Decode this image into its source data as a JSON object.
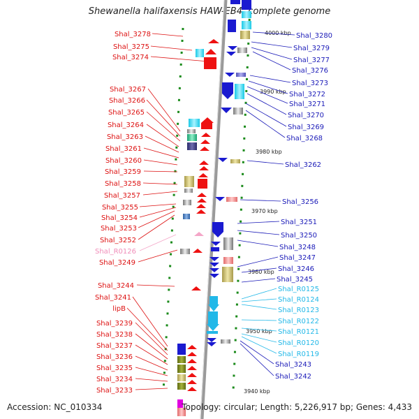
{
  "title": "Shewanella halifaxensis HAW-EB4, complete genome",
  "footer": {
    "accession": "Accession: NC_010334",
    "stats": "Topology: circular; Length: 5,226,917 bp; Genes: 4,433"
  },
  "kbp_labels": [
    "4000 kbp",
    "3990 kbp",
    "3980 kbp",
    "3970 kbp",
    "3960 kbp",
    "3950 kbp",
    "3940 kbp"
  ],
  "left_labels": [
    "Shal_3278",
    "Shal_3275",
    "Shal_3274",
    "Shal_3267",
    "Shal_3266",
    "Shal_3265",
    "Shal_3264",
    "Shal_3263",
    "Shal_3261",
    "Shal_3260",
    "Shal_3259",
    "Shal_3258",
    "Shal_3257",
    "Shal_3255",
    "Shal_3254",
    "Shal_3253",
    "Shal_3252",
    "Shal_R0126",
    "Shal_3249",
    "Shal_3244",
    "Shal_3241",
    "lipB",
    "Shal_3239",
    "Shal_3238",
    "Shal_3237",
    "Shal_3236",
    "Shal_3235",
    "Shal_3234",
    "Shal_3233"
  ],
  "right_labels": [
    "Shal_3280",
    "Shal_3279",
    "Shal_3277",
    "Shal_3276",
    "Shal_3273",
    "Shal_3272",
    "Shal_3271",
    "Shal_3270",
    "Shal_3269",
    "Shal_3268",
    "Shal_3262",
    "Shal_3256",
    "Shal_3251",
    "Shal_3250",
    "Shal_3248",
    "Shal_3247",
    "Shal_3246",
    "Shal_3245",
    "Shal_R0125",
    "Shal_R0124",
    "Shal_R0123",
    "Shal_R0122",
    "Shal_R0121",
    "Shal_R0120",
    "Shal_R0119",
    "Shal_3243",
    "Shal_3242"
  ],
  "colors": {
    "forward_gene": "#ee1111",
    "reverse_gene": "#1a1ad0",
    "forward_label": "#dd1111",
    "reverse_label": "#1a1ab8",
    "trna_forward": "#f4a6c8",
    "rna_reverse": "#22b8e8",
    "backbone": "#888888",
    "tick": "#1a8a1a"
  }
}
